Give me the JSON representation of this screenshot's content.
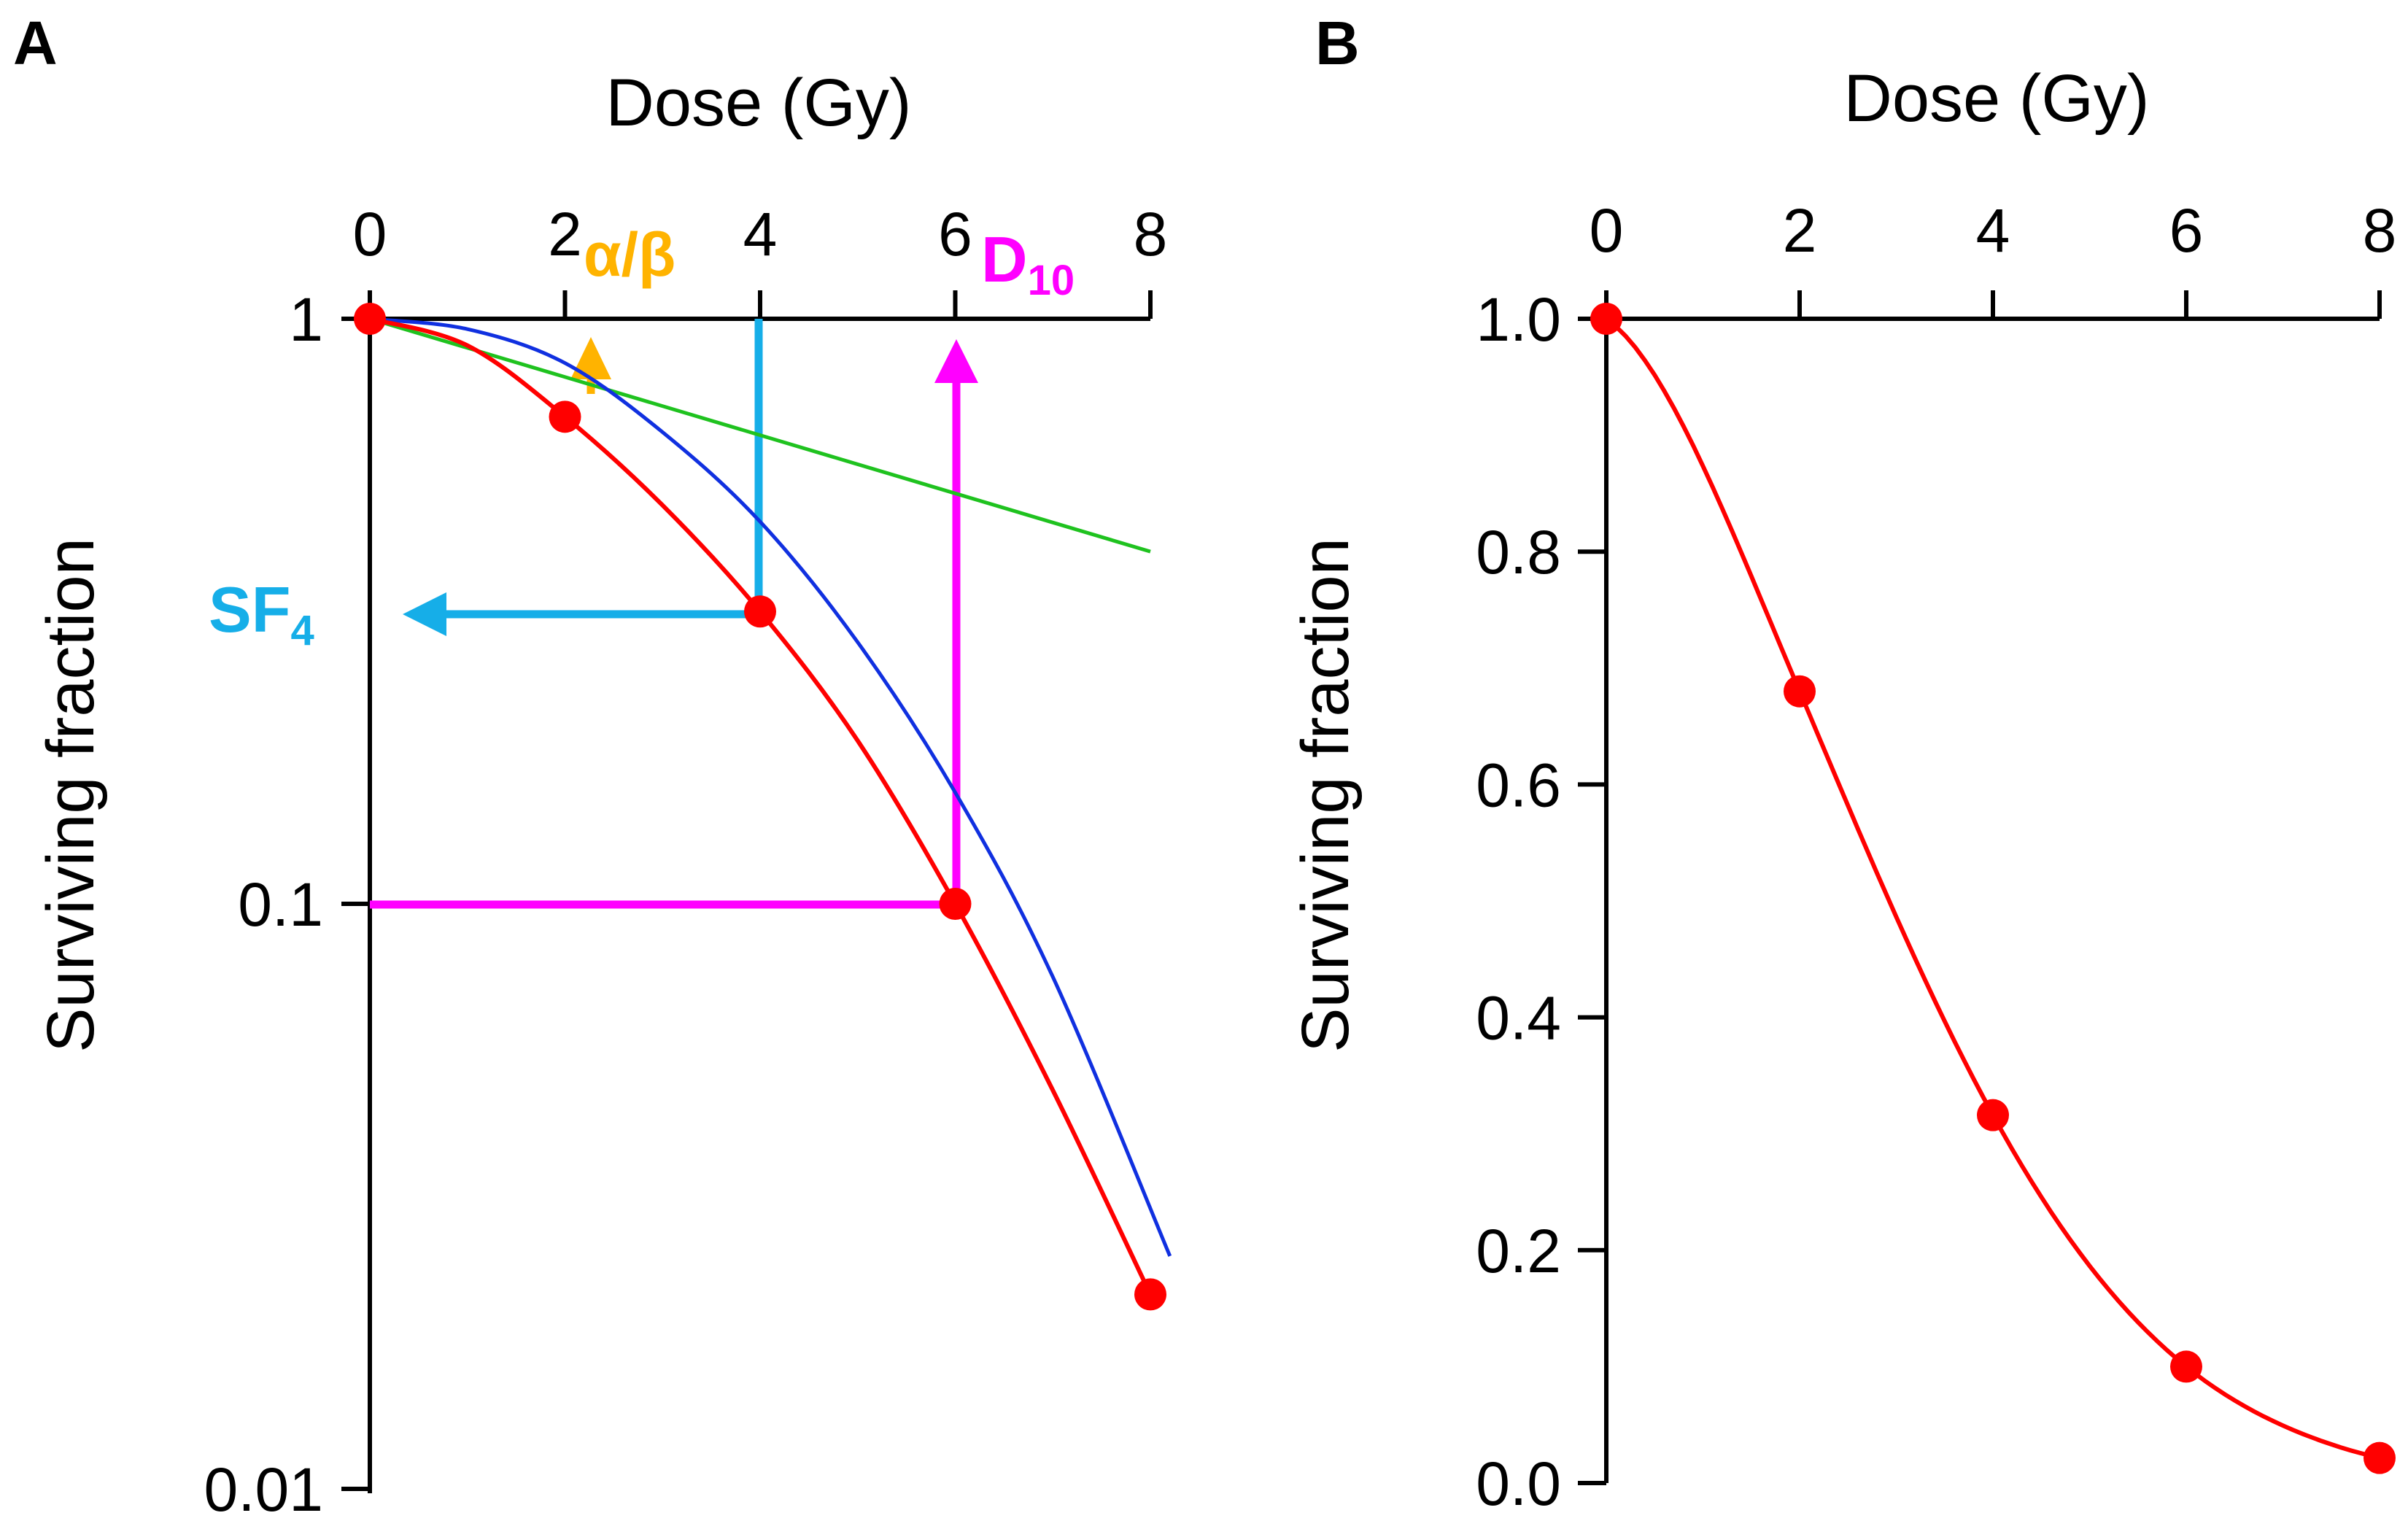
{
  "colors": {
    "data": "#ff0000",
    "model": "#1030e0",
    "linear": "#1fc21f",
    "alpha_beta": "#ffb300",
    "sf": "#16aee8",
    "d10": "#ff00ff",
    "axis": "#000000"
  },
  "panels": [
    {
      "letter": "A",
      "xlabel": "Dose (Gy)",
      "ylabel": "Surviving fraction",
      "annotations": {
        "alpha_beta": "α/β",
        "sf_main": "SF",
        "sf_sub": "4",
        "d10_main": "D",
        "d10_sub": "10"
      }
    },
    {
      "letter": "B",
      "xlabel": "Dose (Gy)",
      "ylabel": "Surviving fraction"
    }
  ],
  "chart_data": [
    {
      "type": "scatter",
      "panel": "A",
      "xlabel": "Dose (Gy)",
      "ylabel": "Surviving fraction",
      "x_ticks": [
        "0",
        "2",
        "4",
        "6",
        "8"
      ],
      "y_ticks": [
        "1",
        "0.1",
        "0.01"
      ],
      "xlim": [
        0,
        8
      ],
      "ylim": [
        0.01,
        1
      ],
      "yscale": "log",
      "x_axis_position": "top",
      "grid": false,
      "series": [
        {
          "role": "data",
          "x": [
            0,
            2,
            4,
            6,
            8
          ],
          "y": [
            1.0,
            0.68,
            0.316,
            0.1,
            0.0215
          ]
        },
        {
          "role": "fit",
          "x": [
            0,
            1,
            2,
            3,
            4,
            5,
            6,
            7,
            8
          ],
          "y": [
            1.0,
            0.9,
            0.68,
            0.48,
            0.316,
            0.19,
            0.1,
            0.048,
            0.0215
          ]
        },
        {
          "role": "model",
          "x": [
            0,
            1,
            2,
            3,
            4,
            5,
            6,
            7,
            8.2
          ],
          "y": [
            1.0,
            0.96,
            0.84,
            0.64,
            0.45,
            0.28,
            0.155,
            0.075,
            0.025
          ]
        },
        {
          "role": "linear",
          "x": [
            0,
            8
          ],
          "y": [
            1.0,
            0.4
          ]
        }
      ],
      "annotations": [
        {
          "label": "α/β",
          "x": 2.2
        },
        {
          "label": "SF4",
          "dose": 4,
          "y": 0.316
        },
        {
          "label": "D10",
          "dose": 6,
          "y": 0.1
        }
      ]
    },
    {
      "type": "line",
      "panel": "B",
      "xlabel": "Dose (Gy)",
      "ylabel": "Surviving fraction",
      "x_ticks": [
        "0",
        "2",
        "4",
        "6",
        "8"
      ],
      "y_ticks": [
        "1.0",
        "0.8",
        "0.6",
        "0.4",
        "0.2",
        "0.0"
      ],
      "xlim": [
        0,
        8
      ],
      "ylim": [
        0,
        1
      ],
      "yscale": "linear",
      "x_axis_position": "top",
      "grid": false,
      "series": [
        {
          "role": "data",
          "x": [
            0,
            2,
            4,
            6,
            8
          ],
          "y": [
            1.0,
            0.68,
            0.316,
            0.1,
            0.0215
          ]
        }
      ]
    }
  ]
}
